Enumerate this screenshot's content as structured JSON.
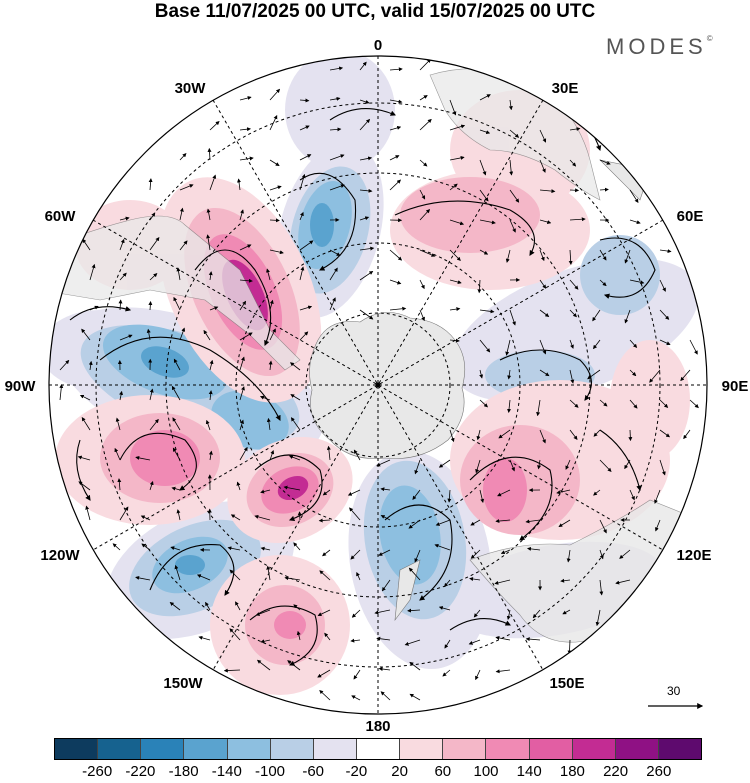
{
  "title": "Base 11/07/2025 00 UTC, valid 15/07/2025 00 UTC",
  "brand": "MODES",
  "brand_mark": "©",
  "longitude_labels": {
    "lon_0": "0",
    "lon_30e": "30E",
    "lon_60e": "60E",
    "lon_90e": "90E",
    "lon_120e": "120E",
    "lon_150e": "150E",
    "lon_180": "180",
    "lon_150w": "150W",
    "lon_120w": "120W",
    "lon_90w": "90W",
    "lon_60w": "60W",
    "lon_30w": "30W"
  },
  "reference_vector": "30",
  "colorbar": {
    "colors": [
      "#0d3b5e",
      "#16628f",
      "#2a82b8",
      "#5aa3cf",
      "#8dbfe0",
      "#b9cfe6",
      "#e4e2f0",
      "#ffffff",
      "#f9dbe0",
      "#f4b7c8",
      "#f08ab4",
      "#e25ea3",
      "#c32c93",
      "#8f1184",
      "#5e0a6e"
    ],
    "ticks": [
      "-260",
      "-220",
      "-180",
      "-140",
      "-100",
      "-60",
      "-20",
      "20",
      "60",
      "100",
      "140",
      "180",
      "220",
      "260"
    ]
  },
  "map_colors": {
    "land": "#e8e8e8",
    "positive_light": "#f9dbe0",
    "positive_mid": "#f4b7c8",
    "positive_strong": "#f08ab4",
    "positive_max": "#c32c93",
    "negative_light": "#e4e2f0",
    "negative_mid": "#b9cfe6",
    "negative_strong": "#8dbfe0",
    "negative_max": "#5aa3cf"
  }
}
